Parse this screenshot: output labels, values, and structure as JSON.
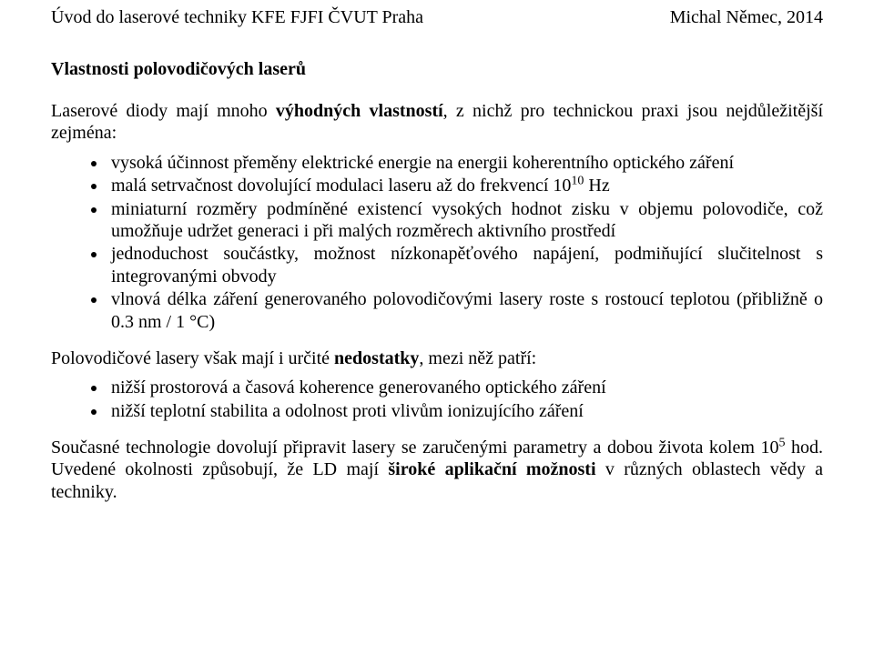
{
  "header": {
    "left": "Úvod do laserové techniky KFE FJFI ČVUT Praha",
    "right": "Michal Němec, 2014"
  },
  "section_title": "Vlastnosti polovodičových laserů",
  "intro_para_pre": "Laserové diody mají mnoho ",
  "intro_para_bold": "výhodných vlastností",
  "intro_para_post": ", z nichž pro technickou praxi jsou nejdůležitější zejména:",
  "advantages": {
    "i0": "vysoká účinnost přeměny elektrické energie na energii koherentního optického záření",
    "i1_pre": "malá setrvačnost dovolující modulaci laseru až do frekvencí 10",
    "i1_sup": "10",
    "i1_post": " Hz",
    "i2": "miniaturní rozměry podmíněné existencí vysokých hodnot zisku v objemu polovodiče, což umožňuje udržet generaci i při malých rozměrech aktivního prostředí",
    "i3": "jednoduchost součástky, možnost nízkonapěťového napájení, podmiňující slučitelnost s integrovanými obvody",
    "i4": "vlnová délka záření generovaného polovodičovými lasery roste s rostoucí teplotou (přibližně o 0.3 nm / 1 °C)"
  },
  "disadv_para_pre": "Polovodičové lasery však mají i určité ",
  "disadv_para_bold": "nedostatky",
  "disadv_para_post": ", mezi něž patří:",
  "disadvantages": {
    "i0": "nižší prostorová a časová koherence generovaného optického záření",
    "i1": "nižší teplotní stabilita a odolnost proti vlivům ionizujícího záření"
  },
  "final_pre": "Současné technologie dovolují připravit lasery se zaručenými parametry a dobou života kolem 10",
  "final_sup": "5",
  "final_mid": " hod. Uvedené okolnosti způsobují, že LD mají ",
  "final_bold": "široké aplikační možnosti",
  "final_post": " v různých oblastech vědy a techniky."
}
